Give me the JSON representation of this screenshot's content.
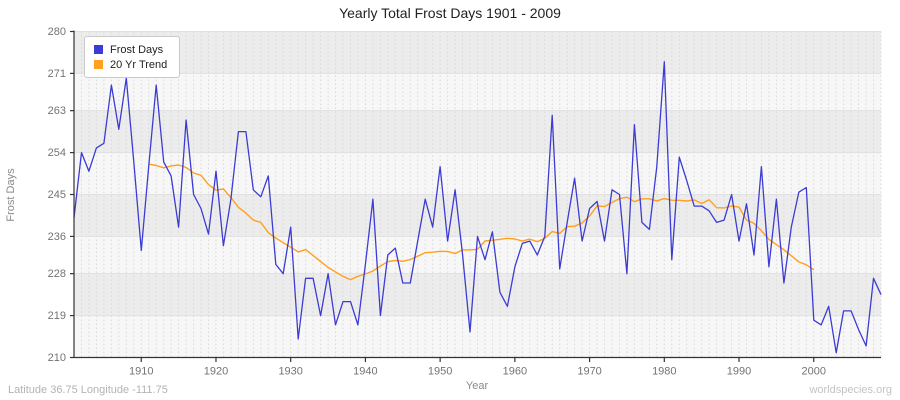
{
  "title": "Yearly Total Frost Days 1901 - 2009",
  "footer": {
    "left": "Latitude 36.75 Longitude -111.75",
    "right": "worldspecies.org"
  },
  "chart_data": {
    "type": "line",
    "title": "Yearly Total Frost Days 1901 - 2009",
    "xlabel": "Year",
    "ylabel": "Frost Days",
    "x_start": 1901,
    "x_end": 2009,
    "ylim": [
      210,
      280
    ],
    "yticks": [
      210,
      219,
      228,
      236,
      245,
      254,
      263,
      271,
      280
    ],
    "xticks": [
      1910,
      1920,
      1930,
      1940,
      1950,
      1960,
      1970,
      1980,
      1990,
      2000
    ],
    "grid": {
      "vertical": "dashed, one per year",
      "horizontal": "solid at y ticks, alternating shaded bands"
    },
    "legend_position": "top-left",
    "colors": {
      "frost_line": "#3c3cd4",
      "trend_line": "#ffa01e",
      "band_dark": "#ececec",
      "band_light": "#f7f7f7",
      "vgrid": "#d8d8d8",
      "hgrid": "#e0e0e0",
      "axis": "#333333"
    },
    "series": [
      {
        "name": "Frost Days",
        "color": "#3c3cd4",
        "start_year": 1901,
        "values": [
          240,
          254,
          250,
          255,
          256,
          268.5,
          259,
          270,
          252,
          233,
          251,
          268.5,
          252,
          249,
          238,
          261,
          245,
          242,
          236.5,
          250,
          234,
          244,
          258.5,
          258.5,
          246,
          244.5,
          249,
          230,
          228,
          238,
          214,
          227,
          227,
          219,
          228,
          217,
          222,
          222,
          217,
          230,
          244,
          219,
          232,
          233.5,
          226,
          226,
          235,
          244,
          238,
          251,
          235,
          246,
          232,
          215.5,
          236,
          231,
          237,
          224,
          221,
          229.5,
          234.5,
          235,
          232,
          236,
          262,
          229,
          239,
          248.5,
          235,
          242,
          243.5,
          235,
          246,
          245,
          228,
          260,
          239,
          237.5,
          251,
          273.5,
          231,
          253,
          248,
          242.5,
          242.5,
          241.5,
          239,
          239.5,
          245,
          235,
          243,
          232,
          251,
          229.5,
          244,
          226,
          238,
          245.5,
          246.5,
          218,
          217,
          221,
          211,
          220,
          220,
          216,
          212.5,
          227,
          223.5
        ]
      },
      {
        "name": "20 Yr Trend",
        "color": "#ffa01e",
        "derived": "20-year centered moving average of Frost Days (window t-10..t+9), plotted for 1911-2000"
      }
    ]
  }
}
